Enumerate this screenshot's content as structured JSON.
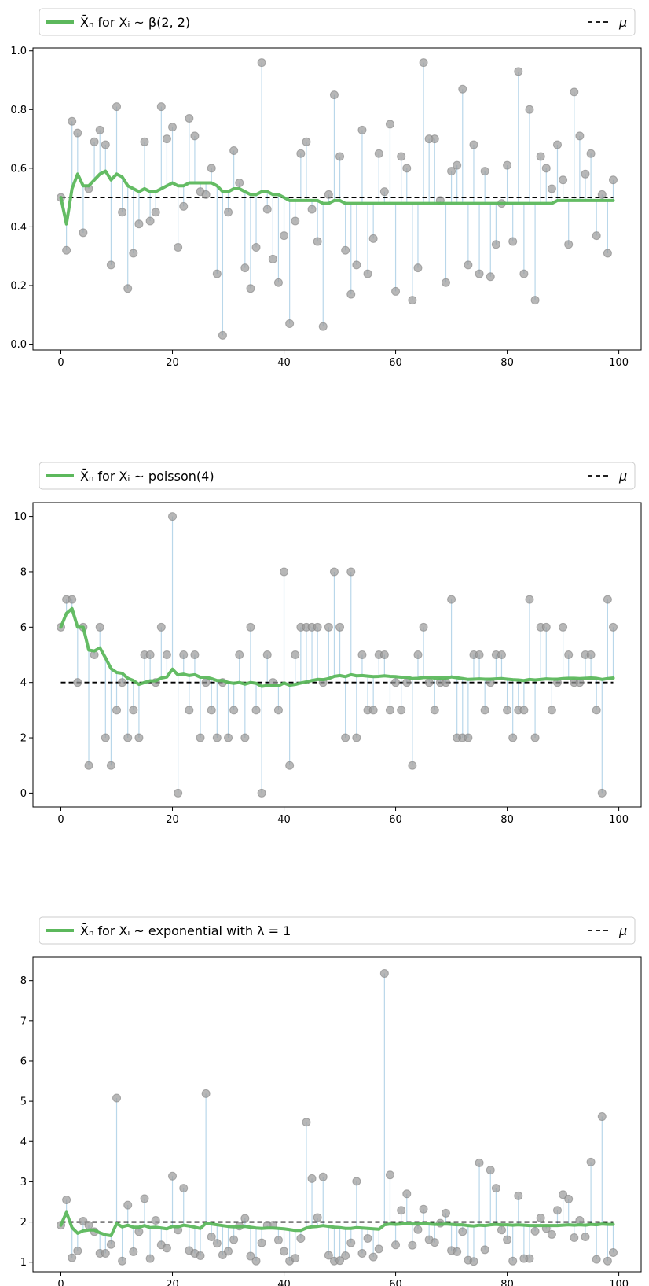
{
  "colors": {
    "mean_line": "#5cb85c",
    "mu_line": "#000000",
    "sample_point": "#999999",
    "stem": "#b9d7ea",
    "frame": "#000000",
    "legend_border": "#cccccc"
  },
  "chart_data": [
    {
      "type": "line",
      "legend": {
        "mean_label": "X̄ₙ for Xᵢ ~ β(2, 2)",
        "mu_label": "μ",
        "placement": "top, above axes"
      },
      "xlim": [
        -5,
        104
      ],
      "ylim": [
        -0.02,
        1.01
      ],
      "xticks": [
        0,
        20,
        40,
        60,
        80,
        100
      ],
      "xtick_labels": [
        "0",
        "20",
        "40",
        "60",
        "80",
        "100"
      ],
      "yticks": [
        0.0,
        0.2,
        0.4,
        0.6,
        0.8,
        1.0
      ],
      "ytick_labels": [
        "0.0",
        "0.2",
        "0.4",
        "0.6",
        "0.8",
        "1.0"
      ],
      "mu": 0.5,
      "samples": [
        0.5,
        0.32,
        0.76,
        0.72,
        0.38,
        0.53,
        0.69,
        0.73,
        0.68,
        0.27,
        0.81,
        0.45,
        0.19,
        0.31,
        0.41,
        0.69,
        0.42,
        0.45,
        0.81,
        0.7,
        0.74,
        0.33,
        0.47,
        0.77,
        0.71,
        0.52,
        0.51,
        0.6,
        0.24,
        0.03,
        0.45,
        0.66,
        0.55,
        0.26,
        0.19,
        0.33,
        0.96,
        0.46,
        0.29,
        0.21,
        0.37,
        0.07,
        0.42,
        0.65,
        0.69,
        0.46,
        0.35,
        0.06,
        0.51,
        0.85,
        0.64,
        0.32,
        0.17,
        0.27,
        0.73,
        0.24,
        0.36,
        0.65,
        0.52,
        0.75,
        0.18,
        0.64,
        0.6,
        0.15,
        0.26,
        0.96,
        0.7,
        0.7,
        0.49,
        0.21,
        0.59,
        0.61,
        0.87,
        0.27,
        0.68,
        0.24,
        0.59,
        0.23,
        0.34,
        0.48,
        0.61,
        0.35,
        0.93,
        0.24,
        0.8,
        0.15,
        0.64,
        0.6,
        0.53,
        0.68,
        0.56,
        0.34,
        0.86,
        0.71,
        0.58,
        0.65,
        0.37,
        0.51,
        0.31,
        0.56
      ],
      "running_mean": [
        0.5,
        0.41,
        0.53,
        0.58,
        0.54,
        0.54,
        0.56,
        0.58,
        0.59,
        0.56,
        0.58,
        0.57,
        0.54,
        0.53,
        0.52,
        0.53,
        0.52,
        0.52,
        0.53,
        0.54,
        0.55,
        0.54,
        0.54,
        0.55,
        0.55,
        0.55,
        0.55,
        0.55,
        0.54,
        0.52,
        0.52,
        0.53,
        0.53,
        0.52,
        0.51,
        0.51,
        0.52,
        0.52,
        0.51,
        0.51,
        0.5,
        0.49,
        0.49,
        0.49,
        0.49,
        0.49,
        0.49,
        0.48,
        0.48,
        0.49,
        0.49,
        0.48,
        0.48,
        0.48,
        0.48,
        0.48,
        0.48,
        0.48,
        0.48,
        0.48,
        0.48,
        0.48,
        0.48,
        0.48,
        0.48,
        0.48,
        0.48,
        0.48,
        0.48,
        0.48,
        0.48,
        0.48,
        0.48,
        0.48,
        0.48,
        0.48,
        0.48,
        0.48,
        0.48,
        0.48,
        0.48,
        0.48,
        0.48,
        0.48,
        0.48,
        0.48,
        0.48,
        0.48,
        0.48,
        0.49,
        0.49,
        0.49,
        0.49,
        0.49,
        0.49,
        0.49,
        0.49,
        0.49,
        0.49,
        0.49
      ]
    },
    {
      "type": "line",
      "legend": {
        "mean_label": "X̄ₙ for Xᵢ ~ poisson(4)",
        "mu_label": "μ",
        "placement": "top, above axes"
      },
      "xlim": [
        -5,
        104
      ],
      "ylim": [
        -0.5,
        10.5
      ],
      "xticks": [
        0,
        20,
        40,
        60,
        80,
        100
      ],
      "xtick_labels": [
        "0",
        "20",
        "40",
        "60",
        "80",
        "100"
      ],
      "yticks": [
        0,
        2,
        4,
        6,
        8,
        10
      ],
      "ytick_labels": [
        "0",
        "2",
        "4",
        "6",
        "8",
        "10"
      ],
      "mu": 4,
      "samples": [
        6,
        7,
        7,
        4,
        6,
        1,
        5,
        6,
        2,
        1,
        3,
        4,
        2,
        3,
        2,
        5,
        5,
        4,
        6,
        5,
        10,
        0,
        5,
        3,
        5,
        2,
        4,
        3,
        2,
        4,
        2,
        3,
        5,
        2,
        6,
        3,
        0,
        5,
        4,
        3,
        8,
        1,
        5,
        6,
        6,
        6,
        6,
        4,
        6,
        8,
        6,
        2,
        8,
        2,
        5,
        3,
        3,
        5,
        5,
        3,
        4,
        3,
        4,
        1,
        5,
        6,
        4,
        3,
        4,
        4,
        7,
        2,
        2,
        2,
        5,
        5,
        3,
        4,
        5,
        5,
        3,
        2,
        3,
        3,
        7,
        2,
        6,
        6,
        3,
        4,
        6,
        5,
        4,
        4,
        5,
        5,
        3,
        0,
        7,
        6
      ],
      "running_mean": [
        6.0,
        6.5,
        6.67,
        6.0,
        6.0,
        5.17,
        5.14,
        5.25,
        4.89,
        4.5,
        4.36,
        4.33,
        4.15,
        4.07,
        3.93,
        4.0,
        4.06,
        4.06,
        4.16,
        4.2,
        4.48,
        4.27,
        4.3,
        4.25,
        4.28,
        4.19,
        4.19,
        4.14,
        4.07,
        4.07,
        4.0,
        3.97,
        4.0,
        3.94,
        4.0,
        3.97,
        3.86,
        3.89,
        3.9,
        3.88,
        3.98,
        3.9,
        3.93,
        3.98,
        4.02,
        4.07,
        4.11,
        4.1,
        4.14,
        4.22,
        4.25,
        4.21,
        4.28,
        4.24,
        4.25,
        4.23,
        4.21,
        4.22,
        4.24,
        4.22,
        4.21,
        4.19,
        4.19,
        4.14,
        4.15,
        4.18,
        4.18,
        4.16,
        4.16,
        4.16,
        4.2,
        4.17,
        4.14,
        4.11,
        4.12,
        4.13,
        4.12,
        4.12,
        4.13,
        4.14,
        4.12,
        4.1,
        4.09,
        4.07,
        4.11,
        4.09,
        4.11,
        4.13,
        4.12,
        4.12,
        4.14,
        4.15,
        4.15,
        4.14,
        4.15,
        4.16,
        4.15,
        4.11,
        4.14,
        4.16
      ]
    },
    {
      "type": "line",
      "legend": {
        "mean_label": "X̄ₙ for Xᵢ ~ exponential with λ = 1",
        "mu_label": "μ",
        "placement": "top, above axes"
      },
      "xlim": [
        -5,
        104
      ],
      "ylim": [
        0.76,
        8.58
      ],
      "xticks": [
        0,
        20,
        40,
        60,
        80,
        100
      ],
      "xtick_labels": [
        "0",
        "20",
        "40",
        "60",
        "80",
        "100"
      ],
      "yticks": [
        1,
        2,
        3,
        4,
        5,
        6,
        7,
        8
      ],
      "ytick_labels": [
        "1",
        "2",
        "3",
        "4",
        "5",
        "6",
        "7",
        "8"
      ],
      "mu": 2,
      "samples": [
        1.92,
        2.55,
        1.11,
        1.28,
        2.02,
        1.92,
        1.76,
        1.22,
        1.22,
        1.44,
        5.08,
        1.03,
        2.42,
        1.26,
        1.76,
        2.58,
        1.09,
        2.04,
        1.43,
        1.35,
        3.14,
        1.8,
        2.84,
        1.29,
        1.22,
        1.16,
        5.19,
        1.63,
        1.47,
        1.18,
        1.27,
        1.56,
        1.9,
        2.09,
        1.15,
        1.03,
        1.48,
        1.92,
        1.92,
        1.55,
        1.27,
        1.03,
        1.1,
        1.59,
        4.48,
        3.08,
        2.11,
        3.12,
        1.17,
        1.03,
        1.04,
        1.16,
        1.48,
        3.01,
        1.22,
        1.59,
        1.13,
        1.33,
        8.18,
        3.17,
        1.43,
        2.29,
        2.7,
        1.42,
        1.81,
        2.32,
        1.56,
        1.49,
        1.97,
        2.22,
        1.29,
        1.26,
        1.76,
        1.05,
        1.02,
        3.47,
        1.31,
        3.29,
        2.84,
        1.8,
        1.56,
        1.03,
        2.65,
        1.09,
        1.09,
        1.77,
        2.1,
        1.84,
        1.69,
        2.29,
        2.68,
        2.57,
        1.61,
        2.04,
        1.63,
        3.49,
        1.07,
        4.62,
        1.03,
        1.24
      ],
      "running_mean": [
        1.92,
        2.24,
        1.86,
        1.72,
        1.78,
        1.8,
        1.8,
        1.73,
        1.68,
        1.66,
        1.96,
        1.88,
        1.92,
        1.87,
        1.87,
        1.91,
        1.86,
        1.87,
        1.85,
        1.83,
        1.89,
        1.88,
        1.92,
        1.9,
        1.87,
        1.84,
        1.97,
        1.95,
        1.93,
        1.91,
        1.89,
        1.88,
        1.88,
        1.89,
        1.87,
        1.85,
        1.84,
        1.85,
        1.85,
        1.84,
        1.83,
        1.81,
        1.79,
        1.79,
        1.85,
        1.88,
        1.89,
        1.91,
        1.89,
        1.87,
        1.86,
        1.84,
        1.84,
        1.86,
        1.85,
        1.84,
        1.83,
        1.82,
        1.93,
        1.95,
        1.94,
        1.95,
        1.96,
        1.95,
        1.95,
        1.96,
        1.95,
        1.94,
        1.94,
        1.95,
        1.94,
        1.93,
        1.93,
        1.91,
        1.9,
        1.92,
        1.91,
        1.93,
        1.94,
        1.93,
        1.93,
        1.92,
        1.93,
        1.92,
        1.91,
        1.91,
        1.91,
        1.91,
        1.91,
        1.91,
        1.92,
        1.93,
        1.92,
        1.93,
        1.92,
        1.94,
        1.93,
        1.95,
        1.94,
        1.94
      ]
    }
  ]
}
